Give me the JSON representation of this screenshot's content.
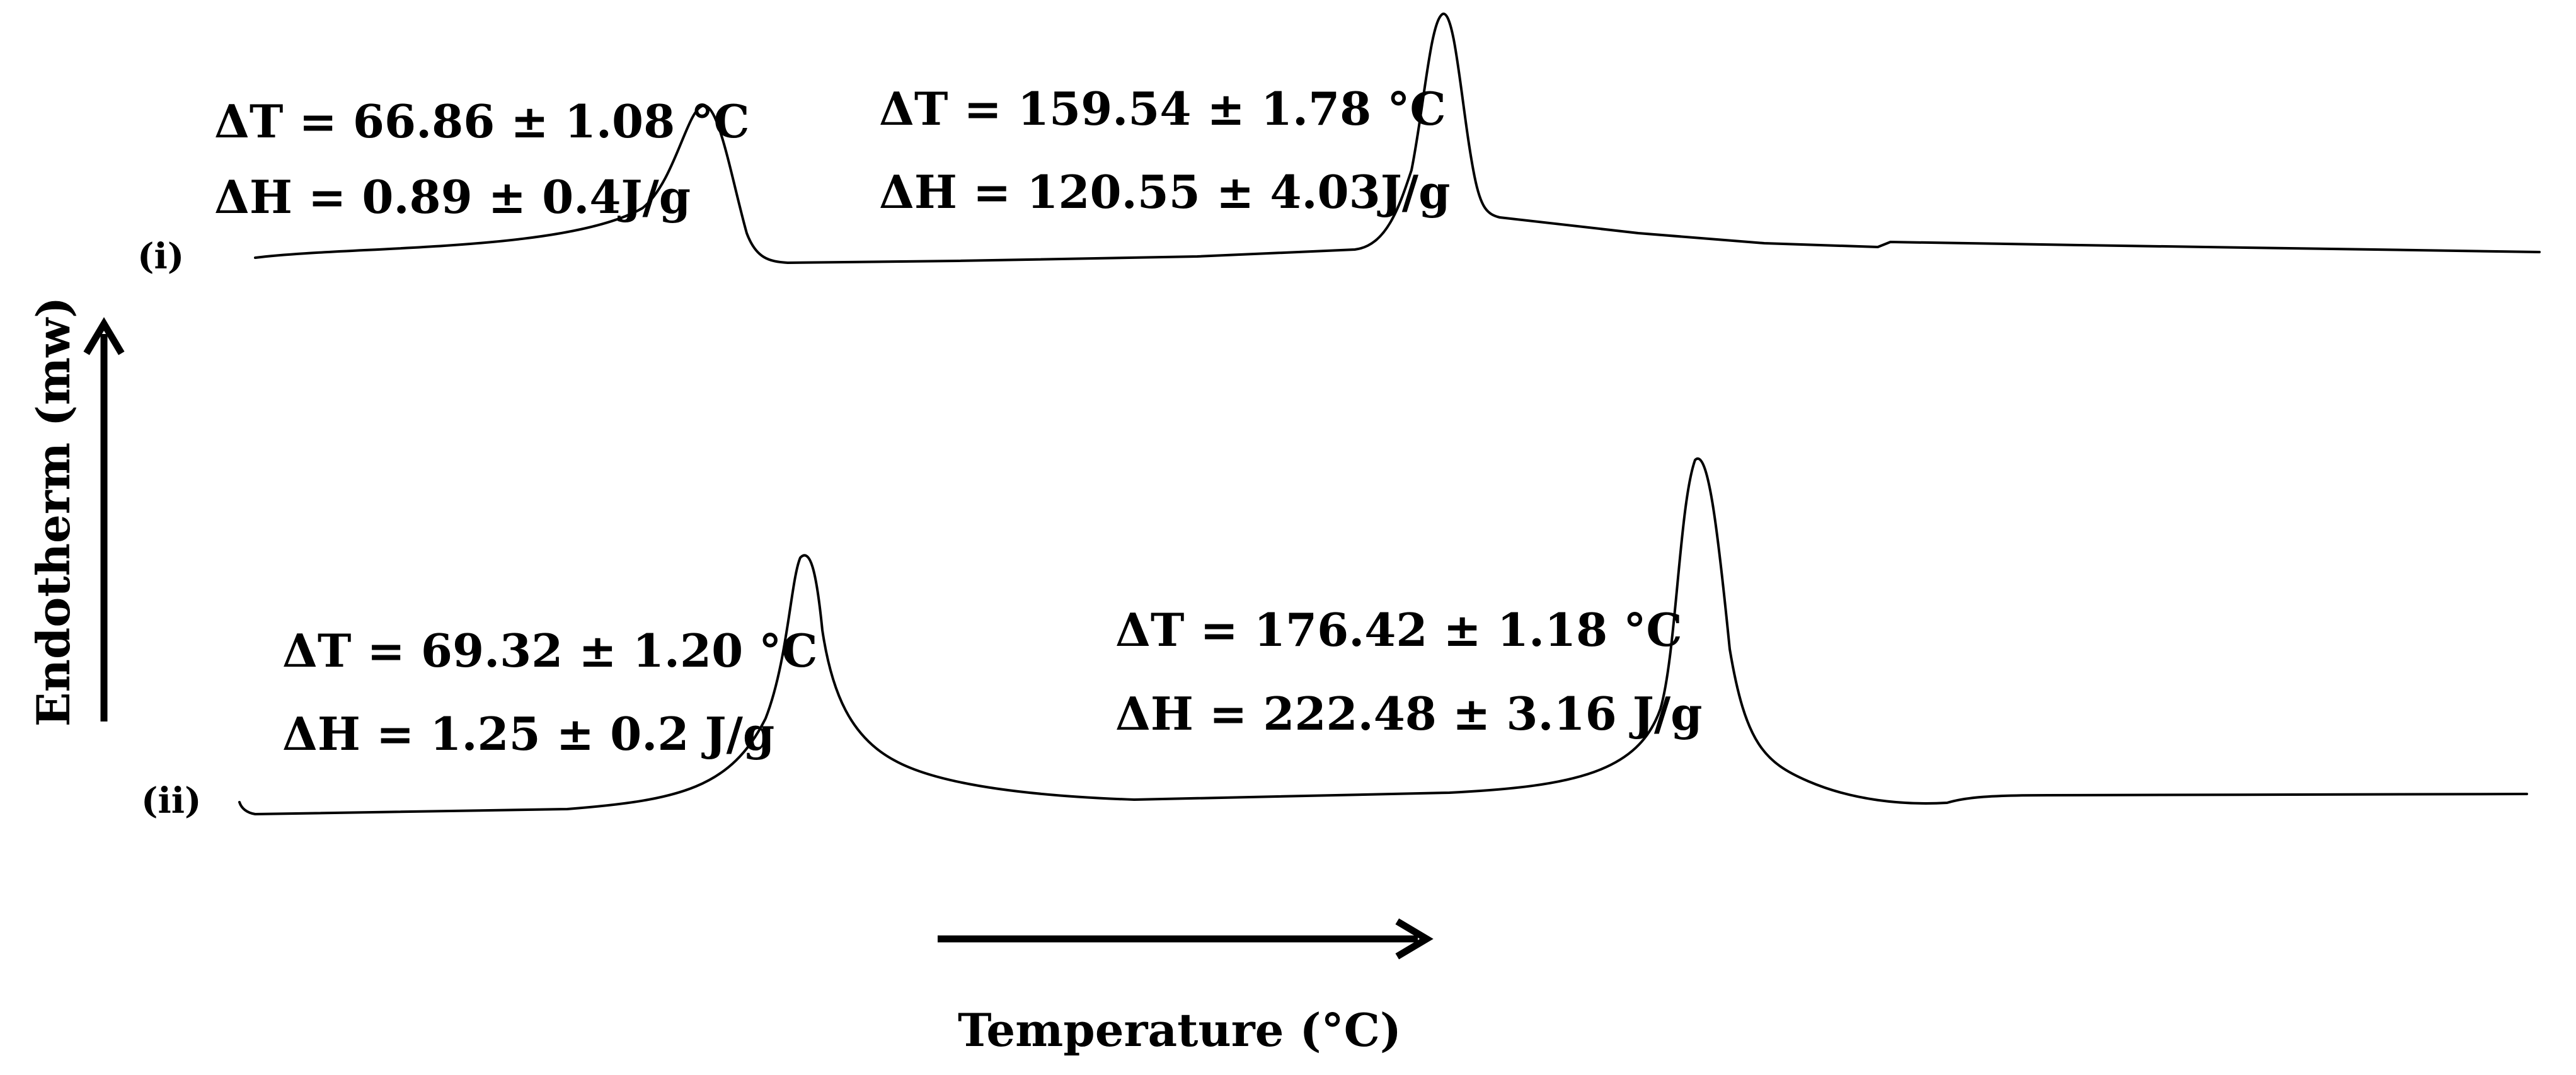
{
  "chart_data": {
    "type": "line",
    "title": "",
    "xlabel": "Temperature (°C)",
    "ylabel": "Endotherm (mw)",
    "grid": false,
    "legend": "none",
    "series": [
      {
        "name": "(i)",
        "peaks": [
          {
            "dT": "ΔT = 66.86 ± 1.08 °C",
            "dH": "ΔH = 0.89 ± 0.4J/g",
            "dT_value": 66.86,
            "dT_error": 1.08,
            "dH_value": 0.89,
            "dH_error": 0.4
          },
          {
            "dT": "ΔT = 159.54 ± 1.78 °C",
            "dH": "ΔH = 120.55 ± 4.03J/g",
            "dT_value": 159.54,
            "dT_error": 1.78,
            "dH_value": 120.55,
            "dH_error": 4.03
          }
        ]
      },
      {
        "name": "(ii)",
        "peaks": [
          {
            "dT": "ΔT = 69.32 ± 1.20 °C",
            "dH": "ΔH = 1.25 ± 0.2 J/g",
            "dT_value": 69.32,
            "dT_error": 1.2,
            "dH_value": 1.25,
            "dH_error": 0.2
          },
          {
            "dT": "ΔT = 176.42 ± 1.18 °C",
            "dH": "ΔH = 222.48 ± 3.16 J/g",
            "dT_value": 176.42,
            "dT_error": 1.18,
            "dH_value": 222.48,
            "dH_error": 3.16
          }
        ]
      }
    ]
  },
  "colors": {
    "line": "#000000",
    "background": "#ffffff"
  }
}
